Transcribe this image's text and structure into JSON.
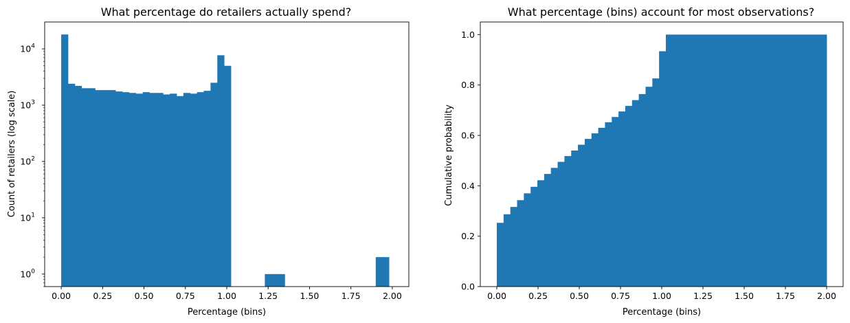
{
  "chart_data": [
    {
      "type": "bar",
      "title": "What percentage do retailers actually spend?",
      "xlabel": "Percentage (bins)",
      "ylabel": "Count of retailers (log scale)",
      "yscale": "log",
      "xlim": [
        -0.1,
        2.1
      ],
      "ylim": [
        0.6,
        30000
      ],
      "grid": false,
      "color": "#1f77b4",
      "bin_width": 0.05,
      "xticks": [
        {
          "value": 0.0,
          "label": "0.00"
        },
        {
          "value": 0.25,
          "label": "0.25"
        },
        {
          "value": 0.5,
          "label": "0.50"
        },
        {
          "value": 0.75,
          "label": "0.75"
        },
        {
          "value": 1.0,
          "label": "1.00"
        },
        {
          "value": 1.25,
          "label": "1.25"
        },
        {
          "value": 1.5,
          "label": "1.50"
        },
        {
          "value": 1.75,
          "label": "1.75"
        },
        {
          "value": 2.0,
          "label": "2.00"
        }
      ],
      "yticks": [
        {
          "value": 1,
          "label": "10",
          "exp": "0"
        },
        {
          "value": 10,
          "label": "10",
          "exp": "1"
        },
        {
          "value": 100,
          "label": "10",
          "exp": "2"
        },
        {
          "value": 1000,
          "label": "10",
          "exp": "3"
        },
        {
          "value": 10000,
          "label": "10",
          "exp": "4"
        }
      ],
      "bins": [
        {
          "x": 0.0,
          "w": 0.041,
          "value": 18000
        },
        {
          "x": 0.041,
          "w": 0.041,
          "value": 2400
        },
        {
          "x": 0.082,
          "w": 0.041,
          "value": 2200
        },
        {
          "x": 0.123,
          "w": 0.041,
          "value": 2000
        },
        {
          "x": 0.164,
          "w": 0.041,
          "value": 2000
        },
        {
          "x": 0.205,
          "w": 0.041,
          "value": 1850
        },
        {
          "x": 0.246,
          "w": 0.041,
          "value": 1850
        },
        {
          "x": 0.287,
          "w": 0.041,
          "value": 1850
        },
        {
          "x": 0.328,
          "w": 0.041,
          "value": 1750
        },
        {
          "x": 0.369,
          "w": 0.041,
          "value": 1700
        },
        {
          "x": 0.41,
          "w": 0.041,
          "value": 1650
        },
        {
          "x": 0.451,
          "w": 0.041,
          "value": 1600
        },
        {
          "x": 0.492,
          "w": 0.041,
          "value": 1700
        },
        {
          "x": 0.533,
          "w": 0.041,
          "value": 1650
        },
        {
          "x": 0.574,
          "w": 0.041,
          "value": 1650
        },
        {
          "x": 0.615,
          "w": 0.041,
          "value": 1550
        },
        {
          "x": 0.656,
          "w": 0.041,
          "value": 1600
        },
        {
          "x": 0.697,
          "w": 0.041,
          "value": 1450
        },
        {
          "x": 0.738,
          "w": 0.041,
          "value": 1650
        },
        {
          "x": 0.779,
          "w": 0.041,
          "value": 1600
        },
        {
          "x": 0.82,
          "w": 0.041,
          "value": 1700
        },
        {
          "x": 0.861,
          "w": 0.041,
          "value": 1800
        },
        {
          "x": 0.902,
          "w": 0.041,
          "value": 2500
        },
        {
          "x": 0.943,
          "w": 0.041,
          "value": 7700
        },
        {
          "x": 0.984,
          "w": 0.041,
          "value": 5000
        },
        {
          "x": 1.23,
          "w": 0.12,
          "value": 1
        },
        {
          "x": 1.9,
          "w": 0.08,
          "value": 2
        }
      ]
    },
    {
      "type": "bar",
      "title": "What percentage (bins) account for most observations?",
      "xlabel": "Percentage (bins)",
      "ylabel": "Cumulative probability",
      "xlim": [
        -0.1,
        2.1
      ],
      "ylim": [
        0,
        1.05
      ],
      "grid": false,
      "color": "#1f77b4",
      "xticks": [
        {
          "value": 0.0,
          "label": "0.00"
        },
        {
          "value": 0.25,
          "label": "0.25"
        },
        {
          "value": 0.5,
          "label": "0.50"
        },
        {
          "value": 0.75,
          "label": "0.75"
        },
        {
          "value": 1.0,
          "label": "1.00"
        },
        {
          "value": 1.25,
          "label": "1.25"
        },
        {
          "value": 1.5,
          "label": "1.50"
        },
        {
          "value": 1.75,
          "label": "1.75"
        },
        {
          "value": 2.0,
          "label": "2.00"
        }
      ],
      "yticks": [
        {
          "value": 0.0,
          "label": "0.0"
        },
        {
          "value": 0.2,
          "label": "0.2"
        },
        {
          "value": 0.4,
          "label": "0.4"
        },
        {
          "value": 0.6,
          "label": "0.6"
        },
        {
          "value": 0.8,
          "label": "0.8"
        },
        {
          "value": 1.0,
          "label": "1.0"
        }
      ],
      "bins": [
        {
          "x": 0.0,
          "w": 0.041,
          "value": 0.253
        },
        {
          "x": 0.041,
          "w": 0.041,
          "value": 0.287
        },
        {
          "x": 0.082,
          "w": 0.041,
          "value": 0.316
        },
        {
          "x": 0.123,
          "w": 0.041,
          "value": 0.343
        },
        {
          "x": 0.164,
          "w": 0.041,
          "value": 0.37
        },
        {
          "x": 0.205,
          "w": 0.041,
          "value": 0.396
        },
        {
          "x": 0.246,
          "w": 0.041,
          "value": 0.422
        },
        {
          "x": 0.287,
          "w": 0.041,
          "value": 0.447
        },
        {
          "x": 0.328,
          "w": 0.041,
          "value": 0.471
        },
        {
          "x": 0.369,
          "w": 0.041,
          "value": 0.495
        },
        {
          "x": 0.41,
          "w": 0.041,
          "value": 0.518
        },
        {
          "x": 0.451,
          "w": 0.041,
          "value": 0.54
        },
        {
          "x": 0.492,
          "w": 0.041,
          "value": 0.563
        },
        {
          "x": 0.533,
          "w": 0.041,
          "value": 0.586
        },
        {
          "x": 0.574,
          "w": 0.041,
          "value": 0.608
        },
        {
          "x": 0.615,
          "w": 0.041,
          "value": 0.63
        },
        {
          "x": 0.656,
          "w": 0.041,
          "value": 0.652
        },
        {
          "x": 0.697,
          "w": 0.041,
          "value": 0.673
        },
        {
          "x": 0.738,
          "w": 0.041,
          "value": 0.695
        },
        {
          "x": 0.779,
          "w": 0.041,
          "value": 0.717
        },
        {
          "x": 0.82,
          "w": 0.041,
          "value": 0.74
        },
        {
          "x": 0.861,
          "w": 0.041,
          "value": 0.764
        },
        {
          "x": 0.902,
          "w": 0.041,
          "value": 0.793
        },
        {
          "x": 0.943,
          "w": 0.041,
          "value": 0.826
        },
        {
          "x": 0.984,
          "w": 0.041,
          "value": 0.934
        },
        {
          "x": 1.025,
          "w": 0.975,
          "value": 1.0
        }
      ]
    }
  ]
}
